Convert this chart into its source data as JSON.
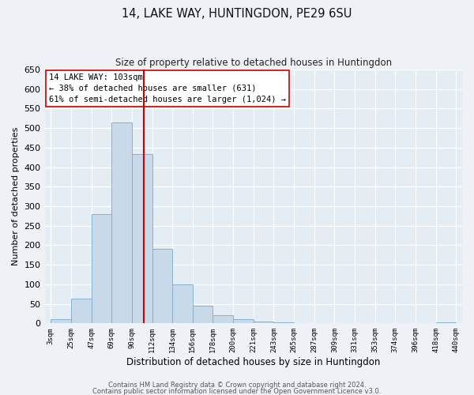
{
  "title": "14, LAKE WAY, HUNTINGDON, PE29 6SU",
  "subtitle": "Size of property relative to detached houses in Huntingdon",
  "xlabel": "Distribution of detached houses by size in Huntingdon",
  "ylabel": "Number of detached properties",
  "tick_labels": [
    "3sqm",
    "25sqm",
    "47sqm",
    "69sqm",
    "90sqm",
    "112sqm",
    "134sqm",
    "156sqm",
    "178sqm",
    "200sqm",
    "221sqm",
    "243sqm",
    "265sqm",
    "287sqm",
    "309sqm",
    "331sqm",
    "353sqm",
    "374sqm",
    "396sqm",
    "418sqm",
    "440sqm"
  ],
  "bar_values": [
    10,
    63,
    280,
    515,
    433,
    190,
    100,
    45,
    20,
    10,
    5,
    2,
    1,
    0,
    0,
    0,
    0,
    0,
    0,
    3
  ],
  "bar_color": "#c8d9ea",
  "bar_edge_color": "#8ab0cc",
  "vline_color": "#cc0000",
  "annotation_text": "14 LAKE WAY: 103sqm\n← 38% of detached houses are smaller (631)\n61% of semi-detached houses are larger (1,024) →",
  "annotation_box_facecolor": "#ffffff",
  "annotation_box_edgecolor": "#cc0000",
  "ylim": [
    0,
    650
  ],
  "yticks": [
    0,
    50,
    100,
    150,
    200,
    250,
    300,
    350,
    400,
    450,
    500,
    550,
    600,
    650
  ],
  "footer1": "Contains HM Land Registry data © Crown copyright and database right 2024.",
  "footer2": "Contains public sector information licensed under the Open Government Licence v3.0.",
  "fig_facecolor": "#eef2f7",
  "plot_facecolor": "#e4ecf4"
}
